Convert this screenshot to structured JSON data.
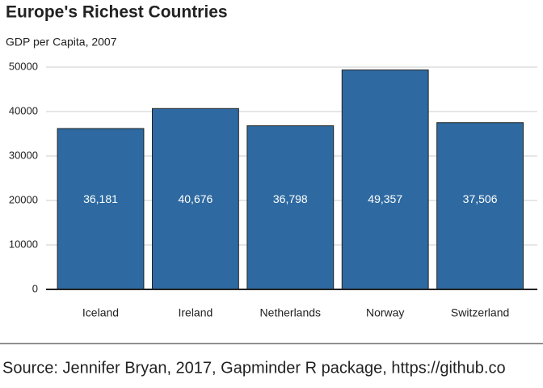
{
  "chart_data": {
    "type": "bar",
    "title": "Europe's Richest Countries",
    "subtitle": "GDP per Capita, 2007",
    "categories": [
      "Iceland",
      "Ireland",
      "Netherlands",
      "Norway",
      "Switzerland"
    ],
    "values": [
      36181,
      40676,
      36798,
      49357,
      37506
    ],
    "value_labels": [
      "36,181",
      "40,676",
      "36,798",
      "49,357",
      "37,506"
    ],
    "color": "#2e6aa1",
    "ylim": [
      0,
      50000
    ],
    "yticks": [
      0,
      10000,
      20000,
      30000,
      40000,
      50000
    ],
    "grid": true,
    "source": "Source: Jennifer Bryan, 2017, Gapminder R package, https://github.co"
  }
}
